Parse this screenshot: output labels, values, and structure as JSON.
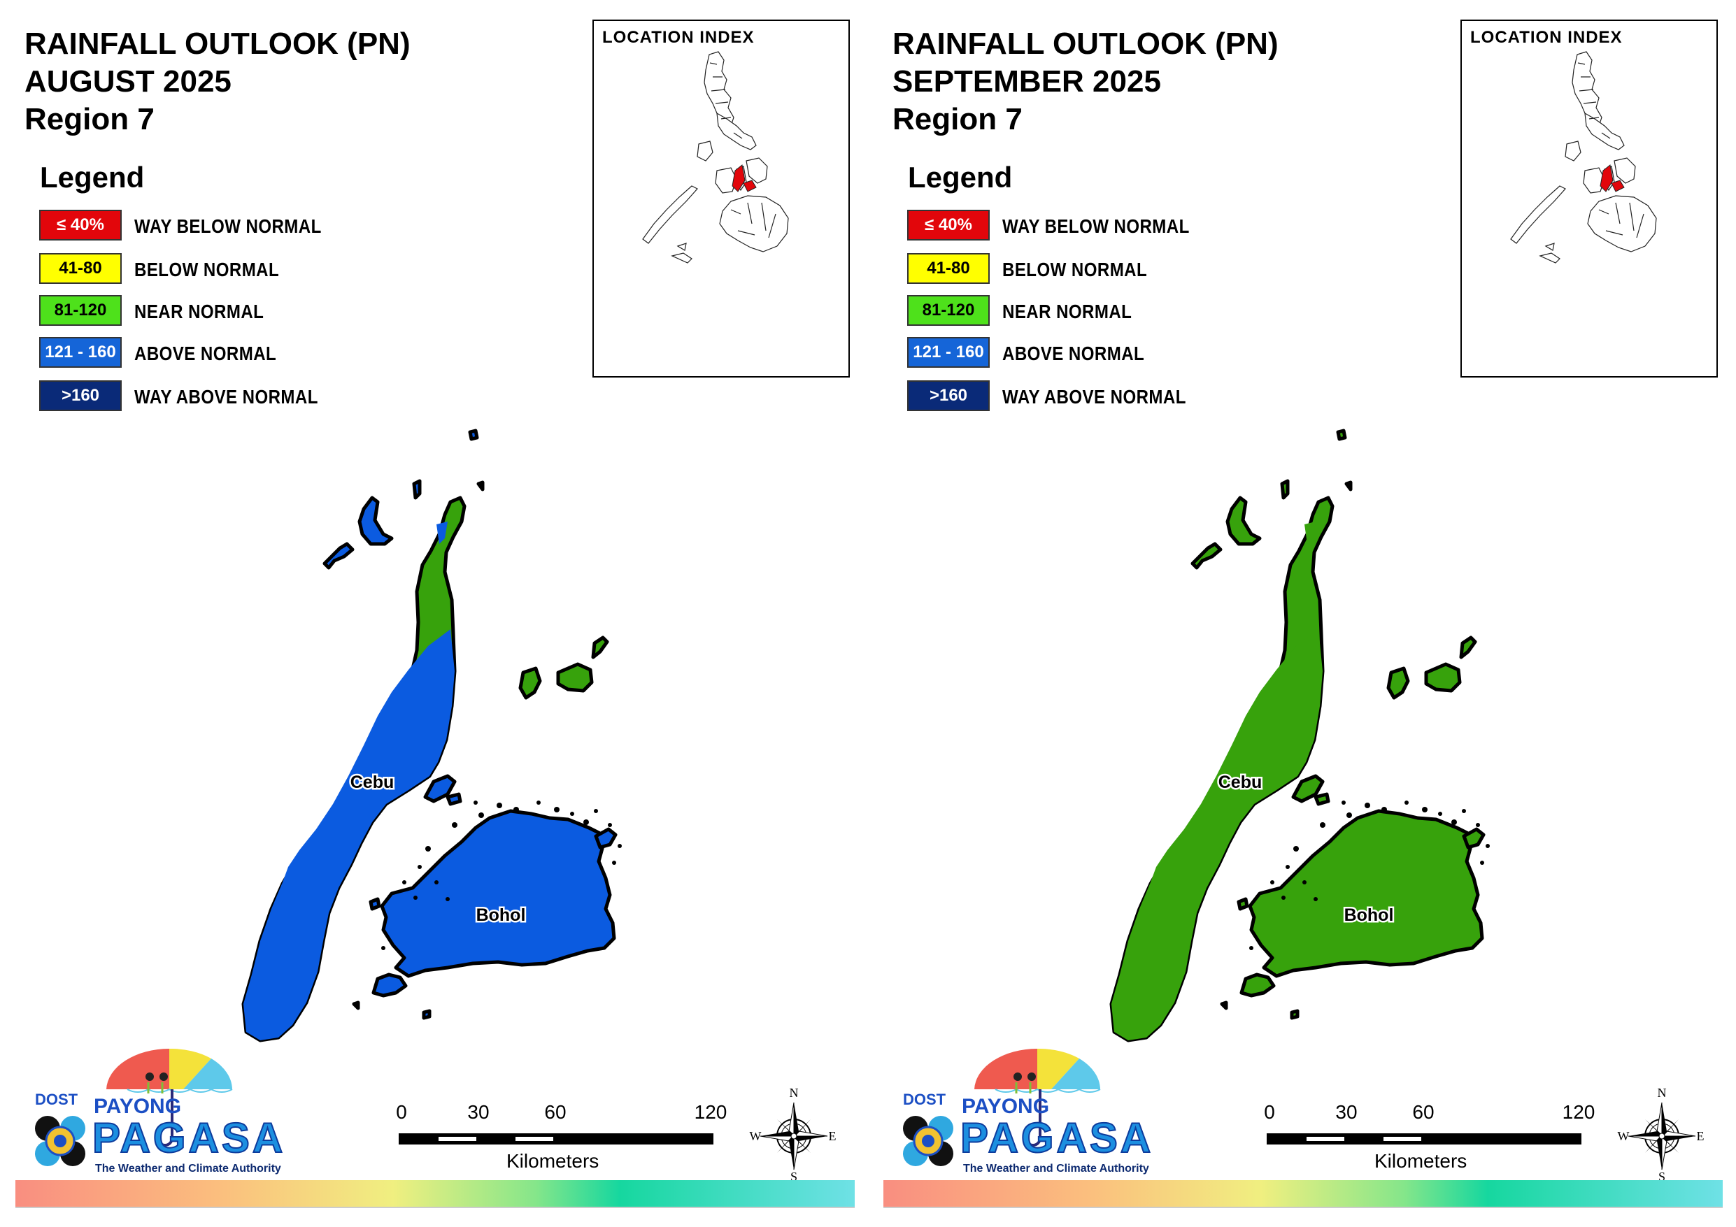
{
  "panels": [
    {
      "title_line1": "RAINFALL OUTLOOK (PN)",
      "title_line2": "AUGUST 2025",
      "title_line3": "Region 7",
      "fill_color": "#0b5be0",
      "fringe_color": "#37a20c",
      "labels": {
        "cebu": "Cebu",
        "bohol": "Bohol"
      }
    },
    {
      "title_line1": "RAINFALL OUTLOOK (PN)",
      "title_line2": "SEPTEMBER 2025",
      "title_line3": "Region 7",
      "fill_color": "#37a20c",
      "fringe_color": "#37a20c",
      "labels": {
        "cebu": "Cebu",
        "bohol": "Bohol"
      }
    }
  ],
  "legend": {
    "heading": "Legend",
    "items": [
      {
        "code": "≤ 40%",
        "label": "WAY BELOW NORMAL",
        "color": "#e2060b",
        "text_color": "#ffffff"
      },
      {
        "code": "41-80",
        "label": "BELOW NORMAL",
        "color": "#ffff00",
        "text_color": "#000000"
      },
      {
        "code": "81-120",
        "label": "NEAR NORMAL",
        "color": "#4ee11b",
        "text_color": "#000000"
      },
      {
        "code": "121 - 160",
        "label": "ABOVE NORMAL",
        "color": "#1565d8",
        "text_color": "#ffffff"
      },
      {
        "code": ">160",
        "label": "WAY ABOVE NORMAL",
        "color": "#0a2a78",
        "text_color": "#ffffff"
      }
    ]
  },
  "inset": {
    "title": "LOCATION INDEX",
    "highlight_color": "#e2060b"
  },
  "logo": {
    "dost": "DOST",
    "payong": "PAYONG",
    "pagasa": "PAGASA",
    "tagline": "The Weather and Climate Authority"
  },
  "scale": {
    "ticks": [
      "0",
      "30",
      "60",
      "120"
    ],
    "unit": "Kilometers"
  },
  "compass": {
    "n": "N",
    "s": "S",
    "e": "E",
    "w": "W"
  }
}
